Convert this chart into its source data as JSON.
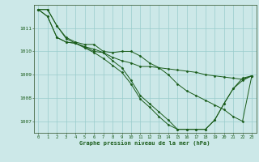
{
  "bg_color": "#cce8e8",
  "grid_color": "#99cccc",
  "line_color": "#1a5c1a",
  "marker_color": "#1a5c1a",
  "xlabel": "Graphe pression niveau de la mer (hPa)",
  "xlabel_color": "#1a5c1a",
  "ylim": [
    1006.5,
    1012.0
  ],
  "xlim": [
    -0.5,
    23.5
  ],
  "yticks": [
    1007,
    1008,
    1009,
    1010,
    1011
  ],
  "xticks": [
    0,
    1,
    2,
    3,
    4,
    5,
    6,
    7,
    8,
    9,
    10,
    11,
    12,
    13,
    14,
    15,
    16,
    17,
    18,
    19,
    20,
    21,
    22,
    23
  ],
  "series": [
    [
      1011.8,
      1011.8,
      1011.1,
      1010.6,
      1010.4,
      1010.3,
      1010.3,
      1010.0,
      1009.95,
      1010.0,
      1010.0,
      1009.8,
      1009.5,
      1009.3,
      1009.0,
      1008.6,
      1008.3,
      1008.1,
      1007.9,
      1007.7,
      1007.5,
      1007.2,
      1007.0,
      1008.95
    ],
    [
      1011.8,
      1011.8,
      1011.1,
      1010.55,
      1010.35,
      1010.2,
      1010.1,
      1009.95,
      1009.75,
      1009.6,
      1009.5,
      1009.35,
      1009.35,
      1009.3,
      1009.25,
      1009.2,
      1009.15,
      1009.1,
      1009.0,
      1008.95,
      1008.9,
      1008.85,
      1008.8,
      1008.95
    ],
    [
      1011.8,
      1011.5,
      1010.6,
      1010.4,
      1010.35,
      1010.2,
      1010.0,
      1009.95,
      1009.6,
      1009.3,
      1008.75,
      1008.1,
      1007.75,
      1007.4,
      1007.05,
      1006.65,
      1006.65,
      1006.65,
      1006.65,
      1007.05,
      1007.75,
      1008.4,
      1008.75,
      1008.95
    ],
    [
      1011.8,
      1011.5,
      1010.6,
      1010.4,
      1010.35,
      1010.15,
      1009.95,
      1009.7,
      1009.4,
      1009.1,
      1008.6,
      1007.95,
      1007.6,
      1007.2,
      1006.85,
      1006.65,
      1006.65,
      1006.65,
      1006.65,
      1007.05,
      1007.75,
      1008.4,
      1008.85,
      1008.95
    ]
  ],
  "tick_fontsize": 4.0,
  "xlabel_fontsize": 5.0
}
